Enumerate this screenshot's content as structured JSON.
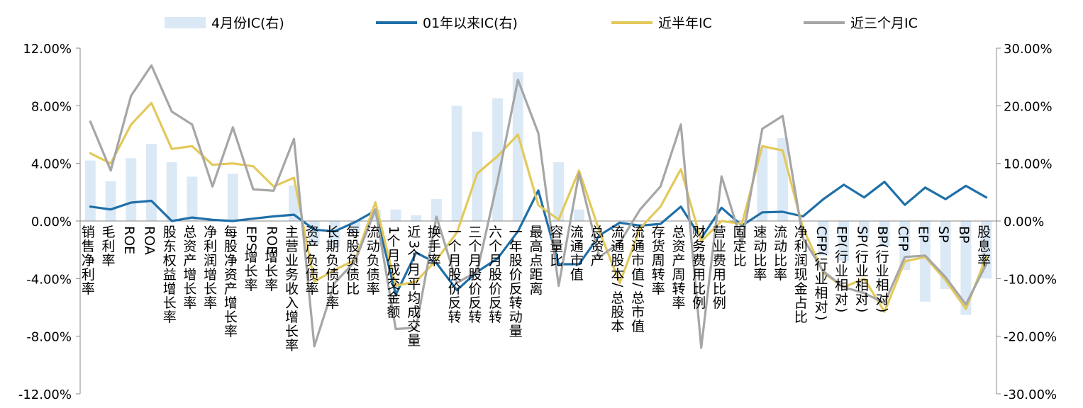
{
  "chart_data": {
    "type": "bar+line",
    "title": "",
    "legend": {
      "placement": "top",
      "entries": [
        "4月份IC(右)",
        "01年以来IC(右)",
        "近半年IC",
        "近三个月IC"
      ]
    },
    "categories": [
      "销售净利率",
      "毛利率",
      "ROE",
      "ROA",
      "股东权益增长率",
      "总资产增长率",
      "净利润增长率",
      "每股净资产增长率",
      "EPS增长率",
      "ROE增长率",
      "主营业务收入增长率",
      "资产负债率",
      "长期负债比率",
      "每股负债比",
      "流动负债率",
      "1个月成交金额",
      "近3个月平均成交量",
      "换手率",
      "一个月股价反转",
      "三个月股价反转",
      "六个月股价反转",
      "一年股价反转动量",
      "最高点距离",
      "容量比",
      "流通市值",
      "总资产",
      "流通股本/总股本",
      "流通市值/总市值",
      "存货周转率",
      "总资产周转率",
      "财务费用比例",
      "营业费用比例",
      "固定比",
      "速动比率",
      "流动比率",
      "净利润现金占比",
      "CFP(行业相对)",
      "EP(行业相对)",
      "SP(行业相对)",
      "BP(行业相对)",
      "CFP",
      "EP",
      "SP",
      "BP",
      "股息率"
    ],
    "axes": {
      "y_left": {
        "min": -12,
        "max": 12,
        "step": 4,
        "unit": "%",
        "tick_labels": [
          "12.00%",
          "8.00%",
          "4.00%",
          "0.00%",
          "-4.00%",
          "-8.00%",
          "-12.00%"
        ]
      },
      "y_right": {
        "min": -30,
        "max": 30,
        "step": 10,
        "unit": "%",
        "tick_labels": [
          "30.00%",
          "20.00%",
          "10.00%",
          "0.00%",
          "-10.00%",
          "-20.00%",
          "-30.00%"
        ]
      }
    },
    "grid": false,
    "series": [
      {
        "name": "4月份IC(右)",
        "type": "bar",
        "axis": "right",
        "color": "#dbe9f6",
        "values": [
          10.5,
          6.9,
          10.9,
          13.4,
          10.2,
          7.7,
          0,
          8.2,
          0,
          0,
          6.2,
          -4.0,
          -4.5,
          -2.0,
          2.0,
          2.0,
          1.0,
          3.8,
          20.0,
          15.5,
          21.3,
          25.8,
          0,
          10.2,
          2.0,
          0,
          0,
          0,
          0,
          0,
          0,
          0,
          0,
          12.8,
          14.4,
          0,
          -6.0,
          -6.9,
          -3.0,
          -4.5,
          -8.5,
          -14.0,
          -11.8,
          -16.3,
          -10.0
        ]
      },
      {
        "name": "01年以来IC(右)",
        "type": "line",
        "axis": "right",
        "color": "#1f6fa8",
        "values": [
          2.5,
          2.0,
          3.2,
          3.5,
          0,
          0.6,
          0.2,
          0,
          0.4,
          0.8,
          1.1,
          -1.5,
          -1.8,
          -0.2,
          1.8,
          -12.8,
          -5.5,
          -7.3,
          -12.0,
          -8.8,
          -6.5,
          -1.8,
          5.3,
          -7.5,
          -7.5,
          -2.5,
          -0.3,
          -0.8,
          -0.5,
          2.5,
          -3.0,
          2.3,
          -0.8,
          1.5,
          1.6,
          0.8,
          3.8,
          6.3,
          4.1,
          6.8,
          2.8,
          5.8,
          3.8,
          6.1,
          4.1
        ]
      },
      {
        "name": "近半年IC",
        "type": "line",
        "axis": "left",
        "color": "#e3c95a",
        "values": [
          4.7,
          4.0,
          6.7,
          8.2,
          5.0,
          5.2,
          3.9,
          4.0,
          3.8,
          2.4,
          3.0,
          -4.2,
          -3.4,
          -2.7,
          1.3,
          -4.5,
          -4.2,
          -2.7,
          -0.8,
          3.3,
          4.5,
          6.0,
          1.1,
          0.1,
          3.5,
          -0.7,
          -4.3,
          -0.5,
          1.0,
          3.6,
          -1.4,
          0.0,
          -0.2,
          5.2,
          4.9,
          -0.5,
          -3.6,
          -4.6,
          -4.0,
          -6.3,
          -2.8,
          -2.5,
          -4.1,
          -6.1,
          -2.5
        ]
      },
      {
        "name": "近三个月IC",
        "type": "line",
        "axis": "left",
        "color": "#a6a6a6",
        "values": [
          6.9,
          3.5,
          8.7,
          10.8,
          7.6,
          6.7,
          2.4,
          6.5,
          2.2,
          2.1,
          5.7,
          -8.7,
          -4.3,
          -2.8,
          0.8,
          -7.5,
          -7.4,
          0.3,
          -4.3,
          -3.5,
          2.8,
          9.8,
          6.1,
          -4.5,
          3.3,
          -2.5,
          -1.5,
          0.8,
          2.4,
          6.7,
          -8.8,
          3.1,
          -1.5,
          6.4,
          7.3,
          -1.2,
          -3.5,
          -4.6,
          -5.0,
          -5.7,
          -2.5,
          -2.4,
          -3.9,
          -5.8,
          -3.0
        ]
      }
    ]
  }
}
